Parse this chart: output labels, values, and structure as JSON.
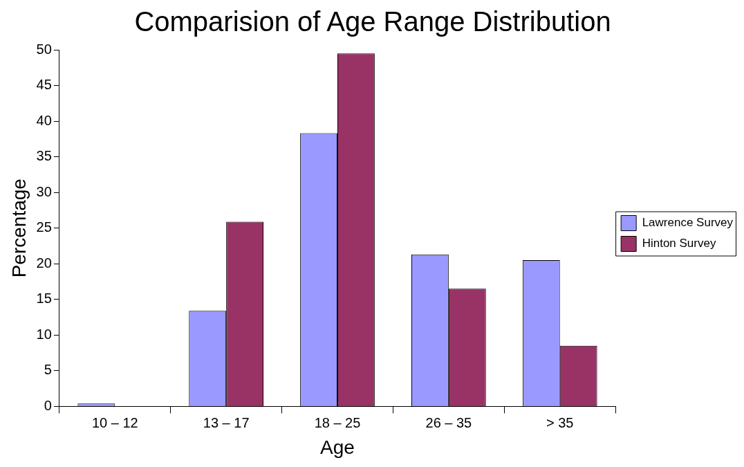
{
  "chart_data": {
    "type": "bar",
    "title": "Comparision of Age Range Distribution",
    "xlabel": "Age",
    "ylabel": "Percentage",
    "categories": [
      "10 – 12",
      "13 – 17",
      "18 – 25",
      "26 – 35",
      "> 35"
    ],
    "series": [
      {
        "name": "Lawrence Survey",
        "color": "#9999ff",
        "values": [
          0.4,
          13.4,
          38.3,
          21.3,
          20.5
        ]
      },
      {
        "name": "Hinton Survey",
        "color": "#993366",
        "values": [
          0,
          25.9,
          49.5,
          16.5,
          8.5
        ]
      }
    ],
    "ylim": [
      0,
      50
    ],
    "yticks": [
      0,
      5,
      10,
      15,
      20,
      25,
      30,
      35,
      40,
      45,
      50
    ],
    "grid": false,
    "legend": "right"
  }
}
